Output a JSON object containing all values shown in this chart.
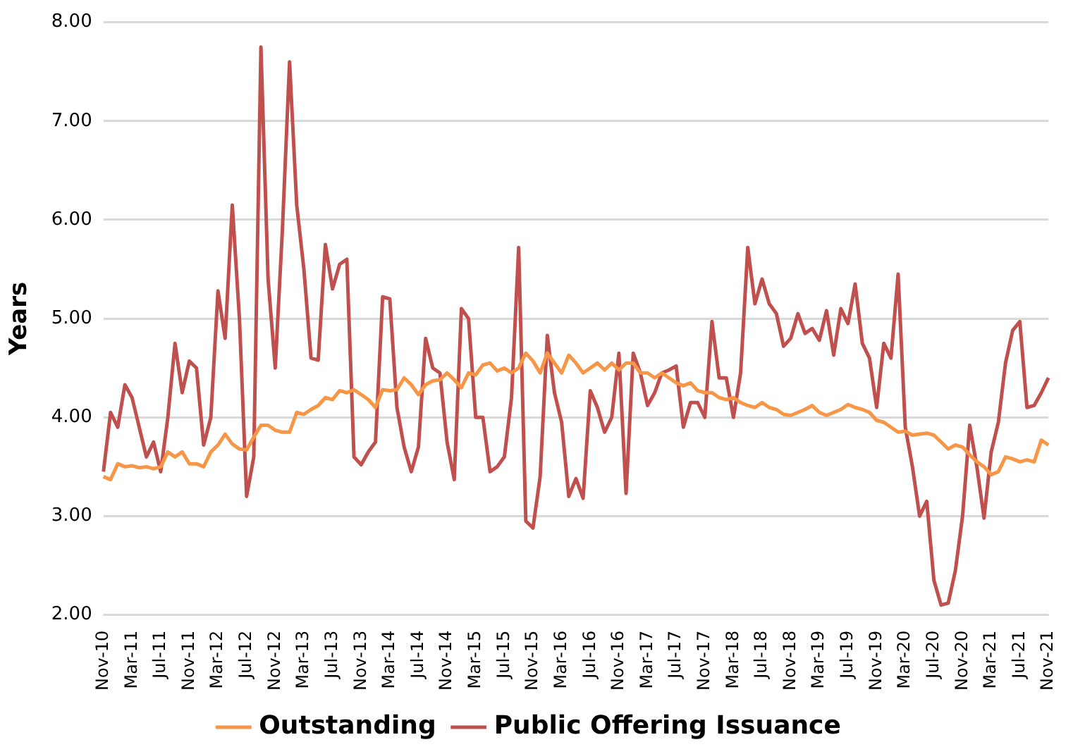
{
  "chart_data": {
    "type": "line",
    "ylabel": "Years",
    "categories": [
      "Nov-10",
      null,
      null,
      null,
      "Mar-11",
      null,
      null,
      null,
      "Jul-11",
      null,
      null,
      null,
      "Nov-11",
      null,
      null,
      null,
      "Mar-12",
      null,
      null,
      null,
      "Jul-12",
      null,
      null,
      null,
      "Nov-12",
      null,
      null,
      null,
      "Mar-13",
      null,
      null,
      null,
      "Jul-13",
      null,
      null,
      null,
      "Nov-13",
      null,
      null,
      null,
      "Mar-14",
      null,
      null,
      null,
      "Jul-14",
      null,
      null,
      null,
      "Nov-14",
      null,
      null,
      null,
      "Mar-15",
      null,
      null,
      null,
      "Jul-15",
      null,
      null,
      null,
      "Nov-15",
      null,
      null,
      null,
      "Mar-16",
      null,
      null,
      null,
      "Jul-16",
      null,
      null,
      null,
      "Nov-16",
      null,
      null,
      null,
      "Mar-17",
      null,
      null,
      null,
      "Jul-17",
      null,
      null,
      null,
      "Nov-17",
      null,
      null,
      null,
      "Mar-18",
      null,
      null,
      null,
      "Jul-18",
      null,
      null,
      null,
      "Nov-18",
      null,
      null,
      null,
      "Mar-19",
      null,
      null,
      null,
      "Jul-19",
      null,
      null,
      null,
      "Nov-19",
      null,
      null,
      null,
      "Mar-20",
      null,
      null,
      null,
      "Jul-20",
      null,
      null,
      null,
      "Nov-20",
      null,
      null,
      null,
      "Mar-21",
      null,
      null,
      null,
      "Jul-21",
      null,
      null,
      null,
      "Nov-21"
    ],
    "series": [
      {
        "name": "Outstanding",
        "color": "#f79646",
        "values": [
          3.4,
          3.37,
          3.53,
          3.5,
          3.51,
          3.49,
          3.5,
          3.48,
          3.5,
          3.65,
          3.6,
          3.65,
          3.53,
          3.53,
          3.5,
          3.65,
          3.72,
          3.83,
          3.73,
          3.68,
          3.67,
          3.8,
          3.92,
          3.92,
          3.87,
          3.85,
          3.85,
          4.05,
          4.03,
          4.08,
          4.12,
          4.2,
          4.18,
          4.27,
          4.25,
          4.28,
          4.23,
          4.18,
          4.1,
          4.28,
          4.27,
          4.28,
          4.4,
          4.33,
          4.23,
          4.33,
          4.37,
          4.38,
          4.45,
          4.38,
          4.3,
          4.45,
          4.43,
          4.53,
          4.55,
          4.47,
          4.5,
          4.45,
          4.5,
          4.65,
          4.57,
          4.45,
          4.65,
          4.55,
          4.45,
          4.63,
          4.55,
          4.45,
          4.5,
          4.55,
          4.48,
          4.55,
          4.48,
          4.55,
          4.55,
          4.45,
          4.45,
          4.4,
          4.45,
          4.4,
          4.35,
          4.32,
          4.35,
          4.27,
          4.25,
          4.25,
          4.2,
          4.18,
          4.2,
          4.15,
          4.12,
          4.1,
          4.15,
          4.1,
          4.08,
          4.03,
          4.02,
          4.05,
          4.08,
          4.12,
          4.05,
          4.02,
          4.05,
          4.08,
          4.13,
          4.1,
          4.08,
          4.05,
          3.97,
          3.95,
          3.9,
          3.85,
          3.86,
          3.82,
          3.83,
          3.84,
          3.82,
          3.75,
          3.68,
          3.72,
          3.7,
          3.62,
          3.55,
          3.5,
          3.42,
          3.45,
          3.6,
          3.58,
          3.55,
          3.57,
          3.55,
          3.77,
          3.72
        ]
      },
      {
        "name": "Public Offering Issuance",
        "color": "#c0504d",
        "values": [
          3.45,
          4.05,
          3.9,
          4.33,
          4.2,
          3.9,
          3.6,
          3.75,
          3.45,
          4.0,
          4.75,
          4.25,
          4.57,
          4.5,
          3.72,
          4.0,
          5.28,
          4.8,
          6.15,
          5.0,
          3.2,
          3.6,
          7.75,
          5.4,
          4.5,
          5.9,
          7.6,
          6.15,
          5.5,
          4.6,
          4.58,
          5.75,
          5.3,
          5.55,
          5.6,
          3.6,
          3.52,
          3.65,
          3.75,
          5.22,
          5.2,
          4.1,
          3.7,
          3.45,
          3.7,
          4.8,
          4.5,
          4.45,
          3.75,
          3.37,
          5.1,
          5.0,
          4.0,
          4.0,
          3.45,
          3.5,
          3.6,
          4.2,
          5.72,
          2.95,
          2.88,
          3.4,
          4.83,
          4.25,
          3.95,
          3.2,
          3.38,
          3.18,
          4.27,
          4.1,
          3.85,
          4.0,
          4.65,
          3.23,
          4.65,
          4.45,
          4.12,
          4.25,
          4.45,
          4.48,
          4.52,
          3.9,
          4.15,
          4.15,
          4.0,
          4.97,
          4.4,
          4.4,
          4.0,
          4.45,
          5.72,
          5.15,
          5.4,
          5.15,
          5.05,
          4.72,
          4.8,
          5.05,
          4.85,
          4.9,
          4.78,
          5.08,
          4.63,
          5.1,
          4.95,
          5.35,
          4.75,
          4.6,
          4.1,
          4.75,
          4.6,
          5.45,
          3.9,
          3.5,
          3.0,
          3.15,
          2.35,
          2.1,
          2.12,
          2.45,
          3.0,
          3.92,
          3.5,
          2.98,
          3.65,
          3.95,
          4.55,
          4.88,
          4.97,
          4.1,
          4.12,
          4.25,
          4.4
        ]
      }
    ],
    "ylim": [
      2,
      8
    ],
    "yticks": [
      {
        "value": 2,
        "label": "2.00"
      },
      {
        "value": 3,
        "label": "3.00"
      },
      {
        "value": 4,
        "label": "4.00"
      },
      {
        "value": 5,
        "label": "5.00"
      },
      {
        "value": 6,
        "label": "6.00"
      },
      {
        "value": 7,
        "label": "7.00"
      },
      {
        "value": 8,
        "label": "8.00"
      }
    ],
    "grid": "y",
    "legend": "bottom",
    "marker": "none",
    "line_style": "solid"
  }
}
